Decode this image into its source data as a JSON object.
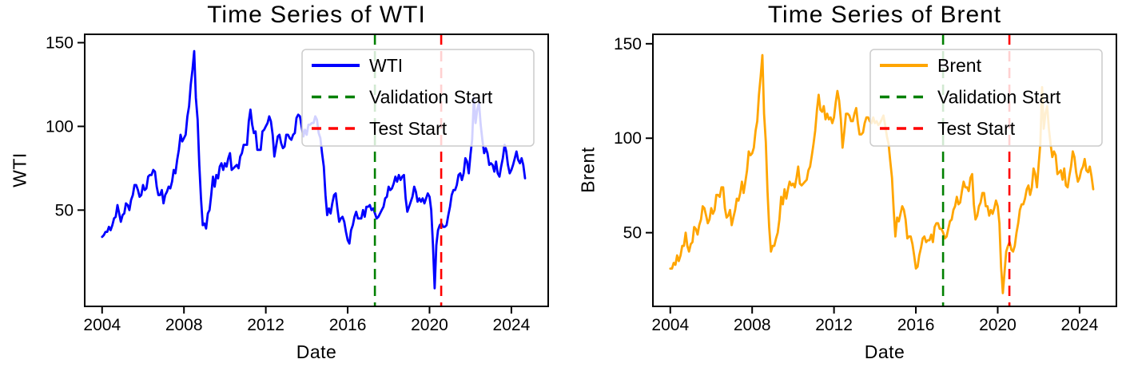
{
  "axis_color": "#000000",
  "legend_style": {
    "border_color": "#CCCCCC",
    "background": "rgba(255,255,255,0.82)"
  },
  "chart_data": [
    {
      "type": "line",
      "title": "Time Series of WTI",
      "xlabel": "Date",
      "ylabel": "WTI",
      "xlim": [
        2003.15,
        2025.8
      ],
      "ylim": [
        -7.5,
        155
      ],
      "xticks": [
        2004,
        2008,
        2012,
        2016,
        2020,
        2024
      ],
      "yticks": [
        50,
        100,
        150
      ],
      "grid": false,
      "legend_position": "upper right",
      "series": [
        {
          "name": "WTI",
          "color": "#0000FF",
          "x_start": 2004.0,
          "x_step_years": 0.0833333,
          "values": [
            34,
            35,
            37,
            37,
            40,
            38,
            41,
            45,
            46,
            53,
            48,
            43,
            47,
            48,
            54,
            53,
            50,
            56,
            59,
            65,
            65,
            62,
            58,
            59,
            65,
            62,
            63,
            70,
            71,
            71,
            74,
            73,
            64,
            59,
            59,
            62,
            54,
            59,
            61,
            64,
            63,
            67,
            74,
            72,
            80,
            86,
            95,
            91,
            93,
            95,
            106,
            112,
            125,
            134,
            145,
            117,
            104,
            77,
            57,
            41,
            42,
            39,
            48,
            50,
            59,
            70,
            64,
            71,
            69,
            76,
            78,
            74,
            78,
            76,
            81,
            84,
            74,
            75,
            76,
            77,
            75,
            82,
            84,
            89,
            89,
            89,
            103,
            110,
            101,
            96,
            97,
            86,
            86,
            86,
            97,
            98,
            100,
            102,
            106,
            103,
            95,
            82,
            88,
            94,
            95,
            90,
            87,
            88,
            95,
            95,
            93,
            92,
            95,
            96,
            105,
            107,
            106,
            100,
            94,
            98,
            95,
            101,
            101,
            102,
            102,
            106,
            104,
            96,
            93,
            84,
            76,
            59,
            47,
            51,
            48,
            54,
            59,
            60,
            51,
            43,
            45,
            46,
            43,
            37,
            32,
            30,
            38,
            41,
            46,
            49,
            45,
            45,
            45,
            50,
            46,
            52,
            52,
            53,
            50,
            51,
            48,
            45,
            46,
            48,
            50,
            52,
            57,
            58,
            64,
            62,
            63,
            66,
            70,
            67,
            71,
            68,
            70,
            71,
            57,
            49,
            52,
            55,
            58,
            64,
            61,
            55,
            57,
            55,
            57,
            54,
            57,
            60,
            58,
            50,
            30,
            3.3,
            29,
            38,
            41,
            42,
            40,
            40,
            41,
            47,
            52,
            59,
            62,
            62,
            65,
            71,
            72,
            68,
            72,
            81,
            79,
            72,
            83,
            92,
            117,
            102,
            110,
            114,
            101,
            92,
            84,
            87,
            84,
            77,
            78,
            77,
            73,
            79,
            72,
            70,
            76,
            81,
            89,
            85,
            77,
            72,
            74,
            77,
            81,
            85,
            80,
            78,
            81,
            77,
            69
          ]
        }
      ],
      "vlines": [
        {
          "label": "Validation Start",
          "x": 2017.33,
          "color": "#008000",
          "style": "dashed"
        },
        {
          "label": "Test Start",
          "x": 2020.57,
          "color": "#FF0000",
          "style": "dashed"
        }
      ],
      "legend_entries": [
        {
          "label": "WTI",
          "color": "#0000FF",
          "dash": false
        },
        {
          "label": "Validation Start",
          "color": "#008000",
          "dash": true
        },
        {
          "label": "Test Start",
          "color": "#FF0000",
          "dash": true
        }
      ]
    },
    {
      "type": "line",
      "title": "Time Series of Brent",
      "xlabel": "Date",
      "ylabel": "Brent",
      "xlim": [
        2003.15,
        2025.8
      ],
      "ylim": [
        11,
        155
      ],
      "xticks": [
        2004,
        2008,
        2012,
        2016,
        2020,
        2024
      ],
      "yticks": [
        50,
        100,
        150
      ],
      "grid": false,
      "legend_position": "upper right",
      "series": [
        {
          "name": "Brent",
          "color": "#FFA500",
          "x_start": 2004.0,
          "x_step_years": 0.0833333,
          "values": [
            31,
            31,
            34,
            33,
            38,
            35,
            38,
            43,
            43,
            50,
            43,
            40,
            44,
            45,
            53,
            52,
            49,
            54,
            57,
            64,
            63,
            59,
            55,
            57,
            63,
            60,
            62,
            70,
            70,
            69,
            74,
            74,
            63,
            58,
            59,
            62,
            54,
            58,
            62,
            68,
            67,
            71,
            77,
            71,
            77,
            83,
            93,
            91,
            92,
            95,
            104,
            109,
            123,
            133,
            144,
            113,
            98,
            72,
            53,
            40,
            43,
            43,
            47,
            50,
            57,
            69,
            65,
            73,
            68,
            73,
            77,
            75,
            76,
            74,
            79,
            85,
            76,
            75,
            76,
            77,
            78,
            83,
            85,
            91,
            97,
            104,
            115,
            123,
            115,
            114,
            117,
            110,
            113,
            110,
            111,
            108,
            111,
            119,
            125,
            120,
            110,
            95,
            103,
            113,
            113,
            112,
            109,
            109,
            113,
            116,
            108,
            102,
            102,
            103,
            108,
            111,
            111,
            109,
            108,
            111,
            108,
            109,
            107,
            108,
            110,
            112,
            107,
            101,
            97,
            88,
            79,
            62,
            48,
            58,
            56,
            60,
            64,
            62,
            57,
            47,
            48,
            48,
            44,
            38,
            31,
            32,
            38,
            42,
            47,
            48,
            45,
            46,
            46,
            49,
            45,
            53,
            55,
            55,
            52,
            52,
            50,
            47,
            48,
            52,
            56,
            57,
            62,
            64,
            69,
            65,
            66,
            72,
            77,
            74,
            74,
            72,
            79,
            81,
            65,
            57,
            59,
            64,
            66,
            71,
            71,
            64,
            64,
            59,
            62,
            60,
            63,
            67,
            64,
            55,
            32,
            18,
            29,
            40,
            43,
            45,
            41,
            40,
            43,
            50,
            55,
            62,
            65,
            65,
            68,
            73,
            75,
            70,
            74,
            84,
            81,
            74,
            86,
            97,
            127,
            105,
            113,
            117,
            105,
            97,
            90,
            93,
            91,
            81,
            82,
            83,
            78,
            84,
            75,
            74,
            80,
            85,
            93,
            90,
            82,
            77,
            79,
            83,
            85,
            89,
            83,
            82,
            85,
            80,
            73
          ]
        }
      ],
      "vlines": [
        {
          "label": "Validation Start",
          "x": 2017.33,
          "color": "#008000",
          "style": "dashed"
        },
        {
          "label": "Test Start",
          "x": 2020.57,
          "color": "#FF0000",
          "style": "dashed"
        }
      ],
      "legend_entries": [
        {
          "label": "Brent",
          "color": "#FFA500",
          "dash": false
        },
        {
          "label": "Validation Start",
          "color": "#008000",
          "dash": true
        },
        {
          "label": "Test Start",
          "color": "#FF0000",
          "dash": true
        }
      ]
    }
  ]
}
